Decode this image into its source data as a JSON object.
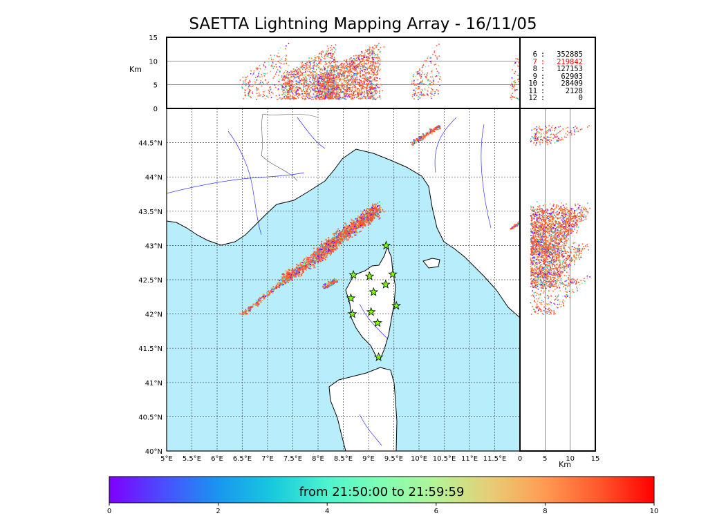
{
  "title": "SAETTA Lightning Mapping Array - 16/11/05",
  "colors": {
    "sea": "#b8eefb",
    "land": "#ffffff",
    "coast": "#000000",
    "rivers": "#3030ff",
    "borders": "#555555",
    "stations": "#7fff00"
  },
  "chart_data": [
    {
      "type": "scatter",
      "panel": "altitude-vs-longitude",
      "ylabel": "Km",
      "xlim": [
        5,
        12
      ],
      "ylim": [
        0,
        15
      ],
      "yticks": [
        "0",
        "5",
        "10",
        "15"
      ],
      "grid_y": [
        5,
        10
      ]
    },
    {
      "type": "scatter",
      "panel": "map-latitude-vs-longitude",
      "xlim": [
        5,
        12
      ],
      "ylim": [
        40,
        45
      ],
      "xticks": [
        "5°E",
        "5.5°E",
        "6°E",
        "6.5°E",
        "7°E",
        "7.5°E",
        "8°E",
        "8.5°E",
        "9°E",
        "9.5°E",
        "10°E",
        "10.5°E",
        "11°E",
        "11.5°E"
      ],
      "yticks": [
        "40°N",
        "40.5°N",
        "41°N",
        "41.5°N",
        "42°N",
        "42.5°N",
        "43°N",
        "43.5°N",
        "44°N",
        "44.5°N"
      ],
      "grid": "dashed",
      "stations": [
        {
          "lon": 9.35,
          "lat": 43.0
        },
        {
          "lon": 8.7,
          "lat": 42.57
        },
        {
          "lon": 9.02,
          "lat": 42.55
        },
        {
          "lon": 9.48,
          "lat": 42.58
        },
        {
          "lon": 9.34,
          "lat": 42.43
        },
        {
          "lon": 9.1,
          "lat": 42.32
        },
        {
          "lon": 8.65,
          "lat": 42.23
        },
        {
          "lon": 9.55,
          "lat": 42.12
        },
        {
          "lon": 8.68,
          "lat": 42.0
        },
        {
          "lon": 9.05,
          "lat": 42.03
        },
        {
          "lon": 9.18,
          "lat": 41.87
        },
        {
          "lon": 9.2,
          "lat": 41.37
        }
      ]
    },
    {
      "type": "scatter",
      "panel": "latitude-vs-altitude",
      "xlabel": "Km",
      "xlim": [
        0,
        15
      ],
      "ylim": [
        40,
        45
      ],
      "xticks": [
        "0",
        "5",
        "10",
        "15"
      ],
      "grid_x": [
        5,
        10
      ]
    },
    {
      "type": "table",
      "panel": "source-counts-by-altitude",
      "rows": [
        {
          "alt": "6",
          "count": "352885",
          "color": "#000000"
        },
        {
          "alt": "7",
          "count": "219842",
          "color": "#ff0000"
        },
        {
          "alt": "8",
          "count": "127153",
          "color": "#000000"
        },
        {
          "alt": "9",
          "count": "62903",
          "color": "#000000"
        },
        {
          "alt": "10",
          "count": "28409",
          "color": "#000000"
        },
        {
          "alt": "11",
          "count": "2128",
          "color": "#000000"
        },
        {
          "alt": "12",
          "count": "0",
          "color": "#000000"
        }
      ]
    },
    {
      "type": "heatmap",
      "panel": "time-colorbar",
      "label": "from 21:50:00 to 21:59:59",
      "range": [
        0,
        10
      ],
      "ticks": [
        "0",
        "2",
        "4",
        "6",
        "8",
        "10"
      ],
      "colormap": [
        "#7f00ff",
        "#4a4eff",
        "#1996f0",
        "#17c9dd",
        "#4df3ce",
        "#80feb3",
        "#b4f396",
        "#e7cd76",
        "#ff9a52",
        "#ff572c",
        "#ff0000"
      ]
    }
  ],
  "storms": [
    {
      "lon0": 6.5,
      "lat0": 42.0,
      "lon1": 7.4,
      "lat1": 42.55,
      "w": 0.06,
      "n": 220
    },
    {
      "lon0": 7.3,
      "lat0": 42.5,
      "lon1": 8.3,
      "lat1": 43.0,
      "w": 0.12,
      "n": 900
    },
    {
      "lon0": 8.0,
      "lat0": 42.9,
      "lon1": 9.2,
      "lat1": 43.55,
      "w": 0.14,
      "n": 1600
    },
    {
      "lon0": 8.1,
      "lat0": 42.4,
      "lon1": 8.35,
      "lat1": 42.5,
      "w": 0.05,
      "n": 160
    },
    {
      "lon0": 9.85,
      "lat0": 44.5,
      "lon1": 10.4,
      "lat1": 44.75,
      "w": 0.05,
      "n": 180
    },
    {
      "lon0": 11.8,
      "lat0": 43.25,
      "lon1": 12.0,
      "lat1": 43.35,
      "w": 0.03,
      "n": 60
    }
  ]
}
